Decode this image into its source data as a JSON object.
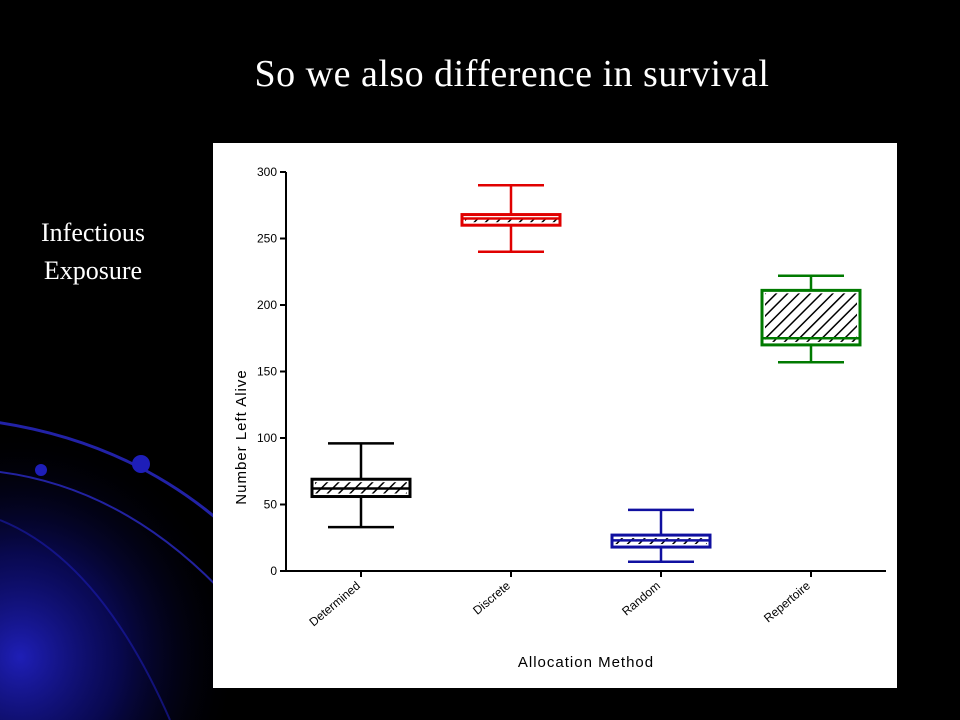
{
  "slide": {
    "title": "So we also difference in survival",
    "side_label_line1": "Infectious",
    "side_label_line2": "Exposure",
    "colors": {
      "background": "#000000",
      "swoosh": "#1a1aa8",
      "text": "#ffffff"
    }
  },
  "chart_data": {
    "type": "boxplot",
    "xlabel": "Allocation Method",
    "ylabel": "Number  Left  Alive",
    "ylim": [
      0,
      300
    ],
    "yticks": [
      "0",
      "50",
      "100",
      "150",
      "200",
      "250",
      "300"
    ],
    "yticks_values": [
      0,
      50,
      100,
      150,
      200,
      250,
      300
    ],
    "categories": [
      "Determined",
      "Discrete",
      "Random",
      "Repertoire"
    ],
    "boxes": [
      {
        "category": "Determined",
        "min": 33,
        "q1": 56,
        "median": 62,
        "q3": 69,
        "max": 96,
        "color": "#000000"
      },
      {
        "category": "Discrete",
        "min": 240,
        "q1": 260,
        "median": 265,
        "q3": 268,
        "max": 290,
        "color": "#e00000"
      },
      {
        "category": "Random",
        "min": 7,
        "q1": 18,
        "median": 23,
        "q3": 27,
        "max": 46,
        "color": "#1010a0"
      },
      {
        "category": "Repertoire",
        "min": 157,
        "q1": 170,
        "median": 175,
        "q3": 211,
        "max": 222,
        "color": "#007a00"
      }
    ],
    "grid": false,
    "legend": "none"
  }
}
